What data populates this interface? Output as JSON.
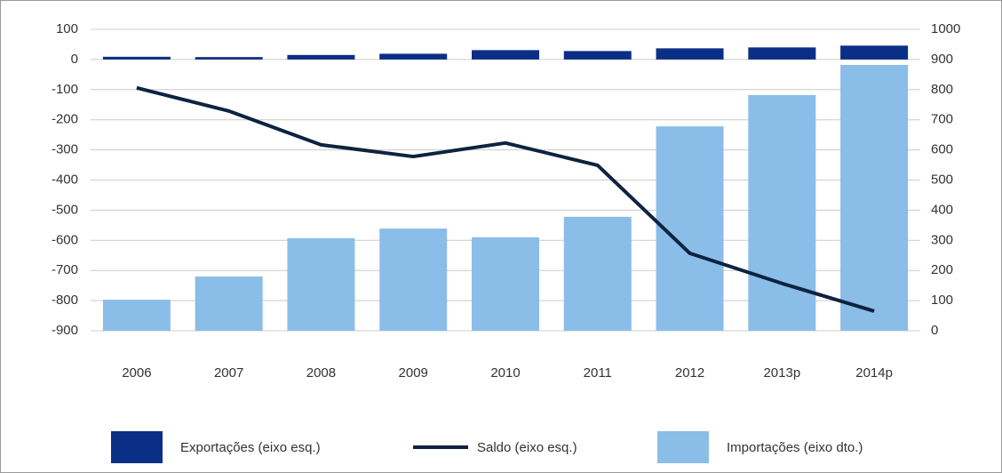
{
  "chart_data": {
    "type": "bar-line",
    "categories": [
      "2006",
      "2007",
      "2008",
      "2009",
      "2010",
      "2011",
      "2012",
      "2013p",
      "2014p"
    ],
    "series": [
      {
        "name": "Exportações (eixo esq.)",
        "type": "bar",
        "color": "#0b2f86",
        "values": [
          9,
          8,
          15,
          19,
          31,
          28,
          37,
          40,
          46
        ]
      },
      {
        "name": "Saldo (eixo esq.)",
        "type": "line",
        "color": "#0d2340",
        "values": [
          -94,
          -171,
          -283,
          -322,
          -277,
          -351,
          -643,
          -743,
          -835
        ]
      },
      {
        "name": "Importações (eixo dto.)",
        "type": "bar",
        "axis": "y2",
        "color": "#8bbde9",
        "values": [
          103,
          180,
          307,
          339,
          310,
          378,
          678,
          782,
          882
        ]
      }
    ],
    "ylim": [
      -900,
      100
    ],
    "yticks": [
      100,
      0,
      -100,
      -200,
      -300,
      -400,
      -500,
      -600,
      -700,
      -800,
      -900
    ],
    "y2lim": [
      0,
      1000
    ],
    "y2ticks": [
      1000,
      900,
      800,
      700,
      600,
      500,
      400,
      300,
      200,
      100,
      0
    ],
    "grid": true
  }
}
